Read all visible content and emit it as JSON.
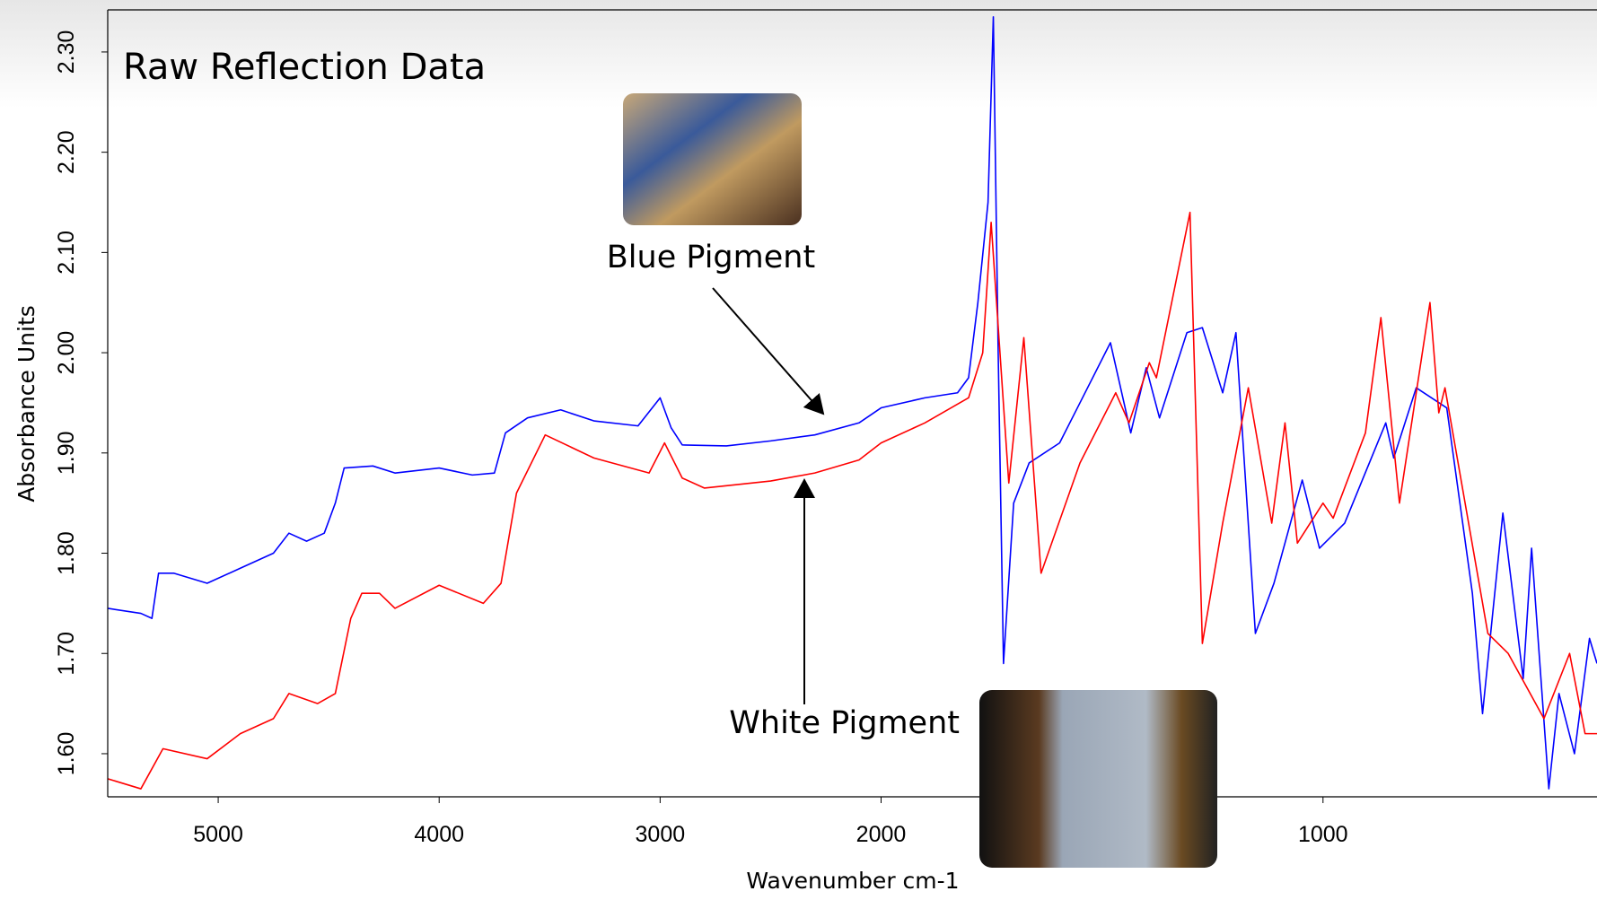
{
  "chart_data": {
    "type": "line",
    "title": "Raw Reflection Data",
    "x_label": "Wavenumber cm-1",
    "y_label": "Absorbance Units",
    "xlim": [
      5500,
      380
    ],
    "x_scale_split": {
      "at": 2000,
      "zoom": 2
    },
    "xticks": [
      5000,
      4000,
      3000,
      2000,
      1000
    ],
    "ylim": [
      1.557,
      2.342
    ],
    "yticks": [
      {
        "value": 1.6,
        "label": "1.60"
      },
      {
        "value": 1.7,
        "label": "1.70"
      },
      {
        "value": 1.8,
        "label": "1.80"
      },
      {
        "value": 1.9,
        "label": "1.90"
      },
      {
        "value": 2,
        "label": "2.00"
      },
      {
        "value": 2.1,
        "label": "2.10"
      },
      {
        "value": 2.2,
        "label": "2.20"
      },
      {
        "value": 2.3,
        "label": "2.30"
      }
    ],
    "series": [
      {
        "name": "Blue Pigment",
        "color": "#0000ff",
        "x": [
          5500,
          5350,
          5300,
          5270,
          5200,
          5050,
          4900,
          4750,
          4680,
          4600,
          4520,
          4470,
          4430,
          4300,
          4200,
          4000,
          3850,
          3750,
          3700,
          3600,
          3450,
          3300,
          3100,
          3000,
          2950,
          2900,
          2700,
          2500,
          2300,
          2100,
          2000,
          1901,
          1827,
          1802,
          1781,
          1758,
          1746,
          1735,
          1723,
          1700,
          1665,
          1596,
          1550,
          1481,
          1435,
          1400,
          1370,
          1308,
          1273,
          1227,
          1197,
          1153,
          1111,
          1047,
          1008,
          951,
          858,
          840,
          789,
          720,
          662,
          639,
          593,
          547,
          528,
          489,
          466,
          431,
          397,
          380
        ],
        "values": [
          1.745,
          1.74,
          1.735,
          1.78,
          1.78,
          1.77,
          1.785,
          1.8,
          1.82,
          1.812,
          1.82,
          1.85,
          1.885,
          1.887,
          1.88,
          1.885,
          1.878,
          1.88,
          1.92,
          1.935,
          1.943,
          1.932,
          1.927,
          1.955,
          1.925,
          1.908,
          1.907,
          1.912,
          1.918,
          1.93,
          1.945,
          1.955,
          1.96,
          1.975,
          2.05,
          2.15,
          2.335,
          2.0,
          1.69,
          1.85,
          1.89,
          1.91,
          1.95,
          2.01,
          1.92,
          1.985,
          1.935,
          2.02,
          2.025,
          1.96,
          2.02,
          1.72,
          1.77,
          1.873,
          1.805,
          1.83,
          1.93,
          1.895,
          1.965,
          1.945,
          1.76,
          1.64,
          1.84,
          1.675,
          1.805,
          1.565,
          1.66,
          1.6,
          1.715,
          1.69
        ]
      },
      {
        "name": "White Pigment",
        "color": "#ff0000",
        "x": [
          5500,
          5350,
          5250,
          5050,
          4900,
          4750,
          4680,
          4550,
          4470,
          4400,
          4350,
          4270,
          4200,
          4000,
          3800,
          3720,
          3650,
          3520,
          3300,
          3050,
          2980,
          2900,
          2800,
          2500,
          2300,
          2100,
          2000,
          1901,
          1802,
          1770,
          1751,
          1711,
          1677,
          1638,
          1550,
          1469,
          1439,
          1393,
          1377,
          1301,
          1273,
          1227,
          1169,
          1116,
          1086,
          1058,
          1000,
          977,
          904,
          869,
          827,
          758,
          738,
          724,
          627,
          581,
          500,
          442,
          407,
          380
        ],
        "values": [
          1.575,
          1.565,
          1.605,
          1.595,
          1.62,
          1.635,
          1.66,
          1.65,
          1.66,
          1.735,
          1.76,
          1.76,
          1.745,
          1.768,
          1.75,
          1.77,
          1.86,
          1.918,
          1.895,
          1.88,
          1.91,
          1.875,
          1.865,
          1.872,
          1.88,
          1.893,
          1.91,
          1.93,
          1.955,
          2.0,
          2.13,
          1.87,
          2.015,
          1.78,
          1.89,
          1.96,
          1.93,
          1.99,
          1.975,
          2.14,
          1.71,
          1.83,
          1.965,
          1.83,
          1.93,
          1.81,
          1.85,
          1.835,
          1.92,
          2.035,
          1.85,
          2.05,
          1.94,
          1.965,
          1.72,
          1.7,
          1.635,
          1.7,
          1.62,
          1.62
        ]
      }
    ]
  }
}
